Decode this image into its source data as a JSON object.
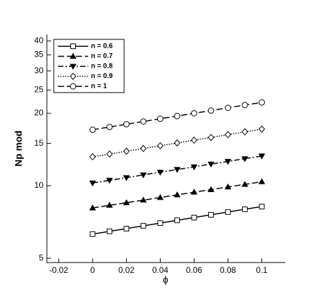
{
  "chart_data": {
    "type": "line",
    "xlabel": "ϕ",
    "ylabel": "Np mod",
    "x": [
      0,
      0.01,
      0.02,
      0.03,
      0.04,
      0.05,
      0.06,
      0.07,
      0.08,
      0.09,
      0.1
    ],
    "xlim": [
      -0.027,
      0.114
    ],
    "xticks": [
      -0.02,
      0,
      0.02,
      0.04,
      0.06,
      0.08,
      0.1
    ],
    "ylim": [
      4.8,
      42.5
    ],
    "yticks": [
      5,
      10,
      15,
      20,
      25,
      30,
      35,
      40
    ],
    "ylog": true,
    "legend": "top-left",
    "series": [
      {
        "name": "n = 0.6",
        "color": "#000000",
        "marker": "square",
        "linestyle": "solid",
        "values": [
          6.3,
          6.47,
          6.64,
          6.82,
          7.0,
          7.19,
          7.38,
          7.58,
          7.78,
          7.99,
          8.2
        ]
      },
      {
        "name": "n = 0.7",
        "color": "#000000",
        "marker": "triangle-up",
        "linestyle": "dashed",
        "values": [
          8.09,
          8.3,
          8.51,
          8.72,
          8.94,
          9.17,
          9.41,
          9.64,
          9.89,
          10.14,
          10.4
        ]
      },
      {
        "name": "n = 0.8",
        "color": "#000000",
        "marker": "triangle-down",
        "linestyle": "dashdot",
        "values": [
          10.27,
          10.54,
          10.81,
          11.1,
          11.39,
          11.69,
          11.99,
          12.31,
          12.63,
          12.96,
          13.3
        ]
      },
      {
        "name": "n = 0.9",
        "color": "#000000",
        "marker": "diamond",
        "linestyle": "dotted",
        "values": [
          13.2,
          13.55,
          13.92,
          14.29,
          14.67,
          15.07,
          15.47,
          15.88,
          16.31,
          16.75,
          17.2
        ]
      },
      {
        "name": "n = 1",
        "color": "#000000",
        "marker": "circle",
        "linestyle": "dashed",
        "values": [
          17.1,
          17.55,
          18.02,
          18.5,
          18.99,
          19.49,
          20.01,
          20.54,
          21.09,
          21.65,
          22.2
        ]
      }
    ]
  }
}
